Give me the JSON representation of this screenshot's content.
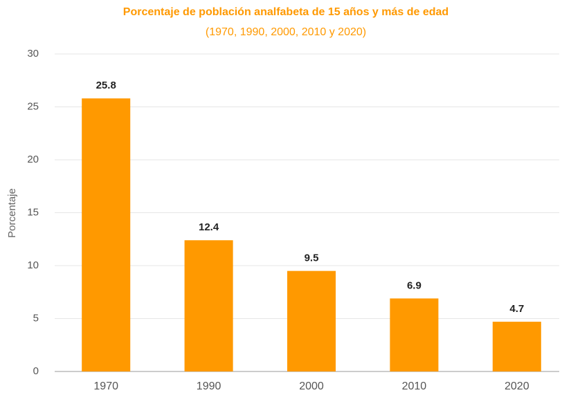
{
  "chart_data": {
    "type": "bar",
    "title": "Porcentaje de población analfabeta de 15 años y más de edad",
    "subtitle": "(1970, 1990, 2000, 2010 y 2020)",
    "y_label": "Porcentaje",
    "categories": [
      "1970",
      "1990",
      "2000",
      "2010",
      "2020"
    ],
    "values": [
      25.8,
      12.4,
      9.5,
      6.9,
      4.7
    ],
    "color": "#ff9900",
    "ylim": [
      0,
      30
    ],
    "yticks": [
      0,
      5,
      10,
      15,
      20,
      25,
      30
    ],
    "grid": true
  }
}
